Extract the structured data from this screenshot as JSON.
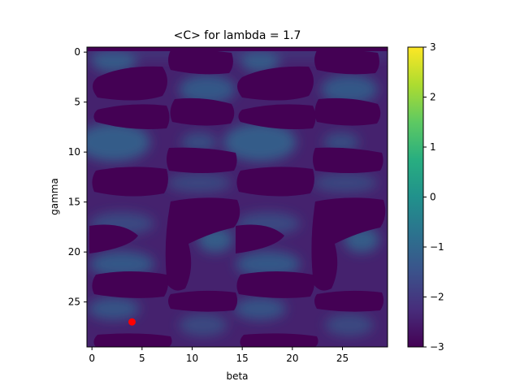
{
  "chart_data": {
    "type": "heatmap",
    "title": "<C> for lambda = 1.7",
    "xlabel": "beta",
    "ylabel": "gamma",
    "x_range": [
      -0.5,
      29.5
    ],
    "y_range": [
      -0.5,
      29.5
    ],
    "y_inverted": true,
    "x_ticks": [
      "0",
      "5",
      "10",
      "15",
      "20",
      "25"
    ],
    "y_ticks": [
      "0",
      "5",
      "10",
      "15",
      "20",
      "25"
    ],
    "colormap": "viridis",
    "colorbar": {
      "min": -3,
      "max": 3,
      "ticks": [
        "−3",
        "−2",
        "−1",
        "0",
        "1",
        "2",
        "3"
      ]
    },
    "marker": {
      "x": 4,
      "y": 27,
      "color": "#ff0000"
    }
  }
}
